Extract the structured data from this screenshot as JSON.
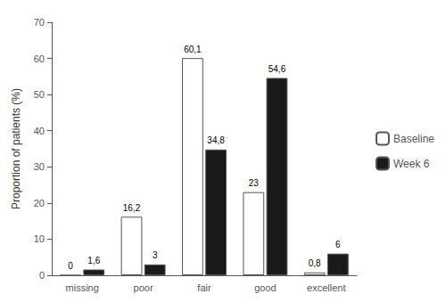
{
  "chart_data": {
    "type": "bar",
    "categories": [
      "missing",
      "poor",
      "fair",
      "good",
      "excellent"
    ],
    "series": [
      {
        "name": "Baseline",
        "color": "#ffffff",
        "values": [
          0,
          16.2,
          60.1,
          23,
          0.8
        ],
        "value_labels": [
          "0",
          "16,2",
          "60,1",
          "23",
          "0,8"
        ]
      },
      {
        "name": "Week 6",
        "color": "#1a1a1a",
        "values": [
          1.6,
          3,
          34.8,
          54.6,
          6
        ],
        "value_labels": [
          "1,6",
          "3",
          "34,8",
          "54,6",
          "6"
        ]
      }
    ],
    "ylabel": "Proportion of patients (%)",
    "ylim": [
      0,
      70
    ],
    "yticks": [
      0,
      10,
      20,
      30,
      40,
      50,
      60,
      70
    ],
    "data_labels": true,
    "legend": "right",
    "grid": false
  }
}
